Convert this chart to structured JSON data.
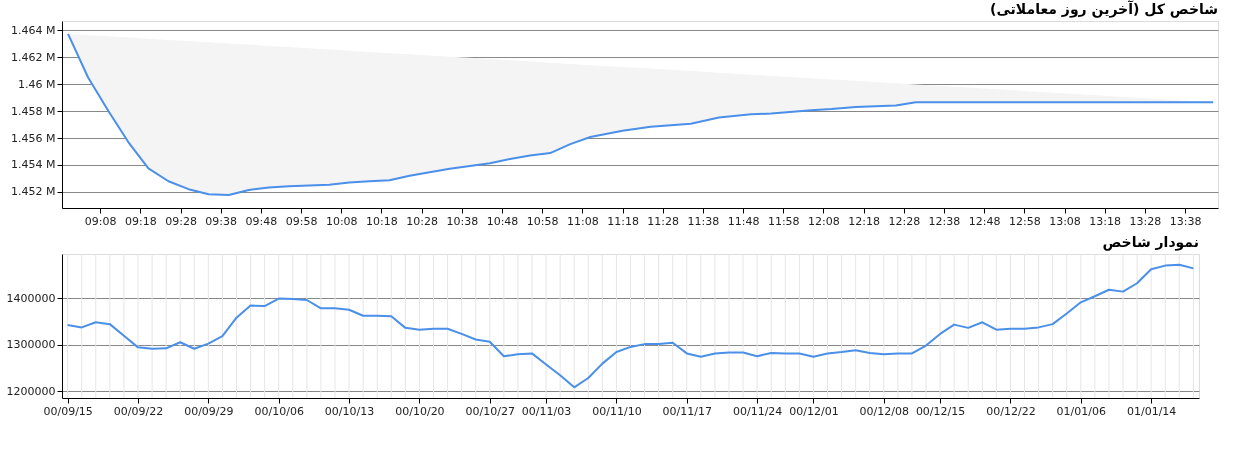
{
  "chart_data": [
    {
      "type": "line",
      "title": "شاخص کل (آخرین روز معاملاتی)",
      "x": [
        9.0,
        9.0833,
        9.1667,
        9.25,
        9.3333,
        9.4167,
        9.5,
        9.5833,
        9.6667,
        9.75,
        9.8333,
        9.9167,
        10.0,
        10.0833,
        10.1667,
        10.25,
        10.3333,
        10.4167,
        10.5,
        10.5833,
        10.6667,
        10.75,
        10.8333,
        10.9167,
        11.0,
        11.0833,
        11.1667,
        11.3,
        11.4167,
        11.5833,
        11.7,
        11.8333,
        11.9167,
        12.0833,
        12.1667,
        12.2667,
        12.4333,
        12.5167,
        13.75
      ],
      "series": [
        {
          "color": "#4a8fe8",
          "values": [
            1463740,
            1460500,
            1458030,
            1455700,
            1453750,
            1452790,
            1452200,
            1451820,
            1451770,
            1452140,
            1452320,
            1452410,
            1452470,
            1452520,
            1452700,
            1452790,
            1452870,
            1453200,
            1453460,
            1453720,
            1453920,
            1454130,
            1454450,
            1454710,
            1454880,
            1455550,
            1456080,
            1456540,
            1456840,
            1457070,
            1457520,
            1457760,
            1457820,
            1458060,
            1458150,
            1458300,
            1458420,
            1458660,
            1458660
          ],
          "lower": [
            1463740,
            1460500,
            1458030,
            1455700,
            1453750,
            1452790,
            1452200,
            1451820,
            1451770,
            1452140,
            1452320,
            1452410,
            1452470,
            1452520,
            1452700,
            1452790,
            1452870,
            1453200,
            1453460,
            1453720,
            1453920,
            1454130,
            1454450,
            1454710,
            1454880,
            1455550,
            1456080,
            1456540,
            1456840,
            1457070,
            1457520,
            1457760,
            1457820,
            1458060,
            1458150,
            1458300,
            1458420,
            1458660,
            1458660
          ],
          "upper": [
            1463740,
            1463650,
            1463560,
            1463470,
            1463380,
            1463290,
            1463210,
            1463120,
            1463030,
            1462940,
            1462850,
            1462760,
            1462670,
            1462580,
            1462490,
            1462400,
            1462310,
            1462230,
            1462140,
            1462050,
            1461960,
            1461870,
            1461780,
            1461690,
            1461600,
            1461510,
            1461420,
            1461280,
            1461160,
            1460980,
            1460850,
            1460710,
            1460620,
            1460440,
            1460350,
            1460250,
            1460070,
            1459980,
            1458660
          ]
        }
      ],
      "xlim": [
        8.975,
        13.77
      ],
      "xticks": [
        {
          "value": 9.1333,
          "label": "09:08"
        },
        {
          "value": 9.3,
          "label": "09:18"
        },
        {
          "value": 9.4667,
          "label": "09:28"
        },
        {
          "value": 9.6333,
          "label": "09:38"
        },
        {
          "value": 9.8,
          "label": "09:48"
        },
        {
          "value": 9.9667,
          "label": "09:58"
        },
        {
          "value": 10.1333,
          "label": "10:08"
        },
        {
          "value": 10.3,
          "label": "10:18"
        },
        {
          "value": 10.4667,
          "label": "10:28"
        },
        {
          "value": 10.6333,
          "label": "10:38"
        },
        {
          "value": 10.8,
          "label": "10:48"
        },
        {
          "value": 10.9667,
          "label": "10:58"
        },
        {
          "value": 11.1333,
          "label": "11:08"
        },
        {
          "value": 11.3,
          "label": "11:18"
        },
        {
          "value": 11.4667,
          "label": "11:28"
        },
        {
          "value": 11.6333,
          "label": "11:38"
        },
        {
          "value": 11.8,
          "label": "11:48"
        },
        {
          "value": 11.9667,
          "label": "11:58"
        },
        {
          "value": 12.1333,
          "label": "12:08"
        },
        {
          "value": 12.3,
          "label": "12:18"
        },
        {
          "value": 12.4667,
          "label": "12:28"
        },
        {
          "value": 12.6333,
          "label": "12:38"
        },
        {
          "value": 12.8,
          "label": "12:48"
        },
        {
          "value": 12.9667,
          "label": "12:58"
        },
        {
          "value": 13.1333,
          "label": "13:08"
        },
        {
          "value": 13.3,
          "label": "13:18"
        },
        {
          "value": 13.4667,
          "label": "13:28"
        },
        {
          "value": 13.6333,
          "label": "13:38"
        }
      ],
      "ylim": [
        1450800,
        1464700
      ],
      "yticks": [
        {
          "value": 1452000,
          "label": "1.452 M"
        },
        {
          "value": 1454000,
          "label": "1.454 M"
        },
        {
          "value": 1456000,
          "label": "1.456 M"
        },
        {
          "value": 1458000,
          "label": "1.458 M"
        },
        {
          "value": 1460000,
          "label": "1.46 M"
        },
        {
          "value": 1462000,
          "label": "1.462 M"
        },
        {
          "value": 1464000,
          "label": "1.464 M"
        }
      ],
      "grid": "y"
    },
    {
      "type": "line",
      "title": "نمودار شاخص",
      "categories": [
        "00/09/15",
        null,
        null,
        null,
        null,
        "00/09/22",
        null,
        null,
        null,
        null,
        "00/09/29",
        null,
        null,
        null,
        null,
        "00/10/06",
        null,
        null,
        null,
        null,
        "00/10/13",
        null,
        null,
        null,
        null,
        "00/10/20",
        null,
        null,
        null,
        null,
        "00/10/27",
        null,
        null,
        null,
        "00/11/03",
        null,
        null,
        null,
        null,
        "00/11/10",
        null,
        null,
        null,
        null,
        "00/11/17",
        null,
        null,
        null,
        null,
        "00/11/24",
        null,
        null,
        null,
        "00/12/01",
        null,
        null,
        null,
        null,
        "00/12/08",
        null,
        null,
        null,
        "00/12/15",
        null,
        null,
        null,
        null,
        "00/12/22",
        null,
        null,
        null,
        null,
        "01/01/06",
        null,
        null,
        null,
        null,
        "01/01/14",
        null,
        null,
        null
      ],
      "series": [
        {
          "color": "#4a8fe8",
          "values": [
            1342000,
            1337000,
            1348000,
            1344000,
            1319000,
            1294000,
            1291000,
            1292000,
            1305000,
            1291000,
            1302000,
            1318000,
            1358000,
            1384000,
            1383000,
            1399000,
            1398000,
            1396000,
            1378000,
            1378000,
            1375000,
            1362000,
            1362000,
            1361000,
            1336000,
            1332000,
            1334000,
            1334000,
            1323000,
            1311000,
            1306000,
            1275000,
            1279000,
            1281000,
            1257000,
            1234000,
            1208000,
            1228000,
            1259000,
            1284000,
            1295000,
            1301000,
            1301000,
            1304000,
            1281000,
            1274000,
            1281000,
            1283000,
            1283000,
            1275000,
            1282000,
            1281000,
            1281000,
            1274000,
            1281000,
            1284000,
            1288000,
            1282000,
            1279000,
            1281000,
            1281000,
            1298000,
            1323000,
            1343000,
            1336000,
            1348000,
            1332000,
            1334000,
            1334000,
            1337000,
            1344000,
            1367000,
            1391000,
            1404000,
            1418000,
            1414000,
            1432000,
            1462000,
            1470000,
            1472000,
            1464000
          ]
        }
      ],
      "ylim": [
        1185000,
        1495000
      ],
      "yticks": [
        1200000,
        1300000,
        1400000
      ],
      "grid": true
    }
  ]
}
